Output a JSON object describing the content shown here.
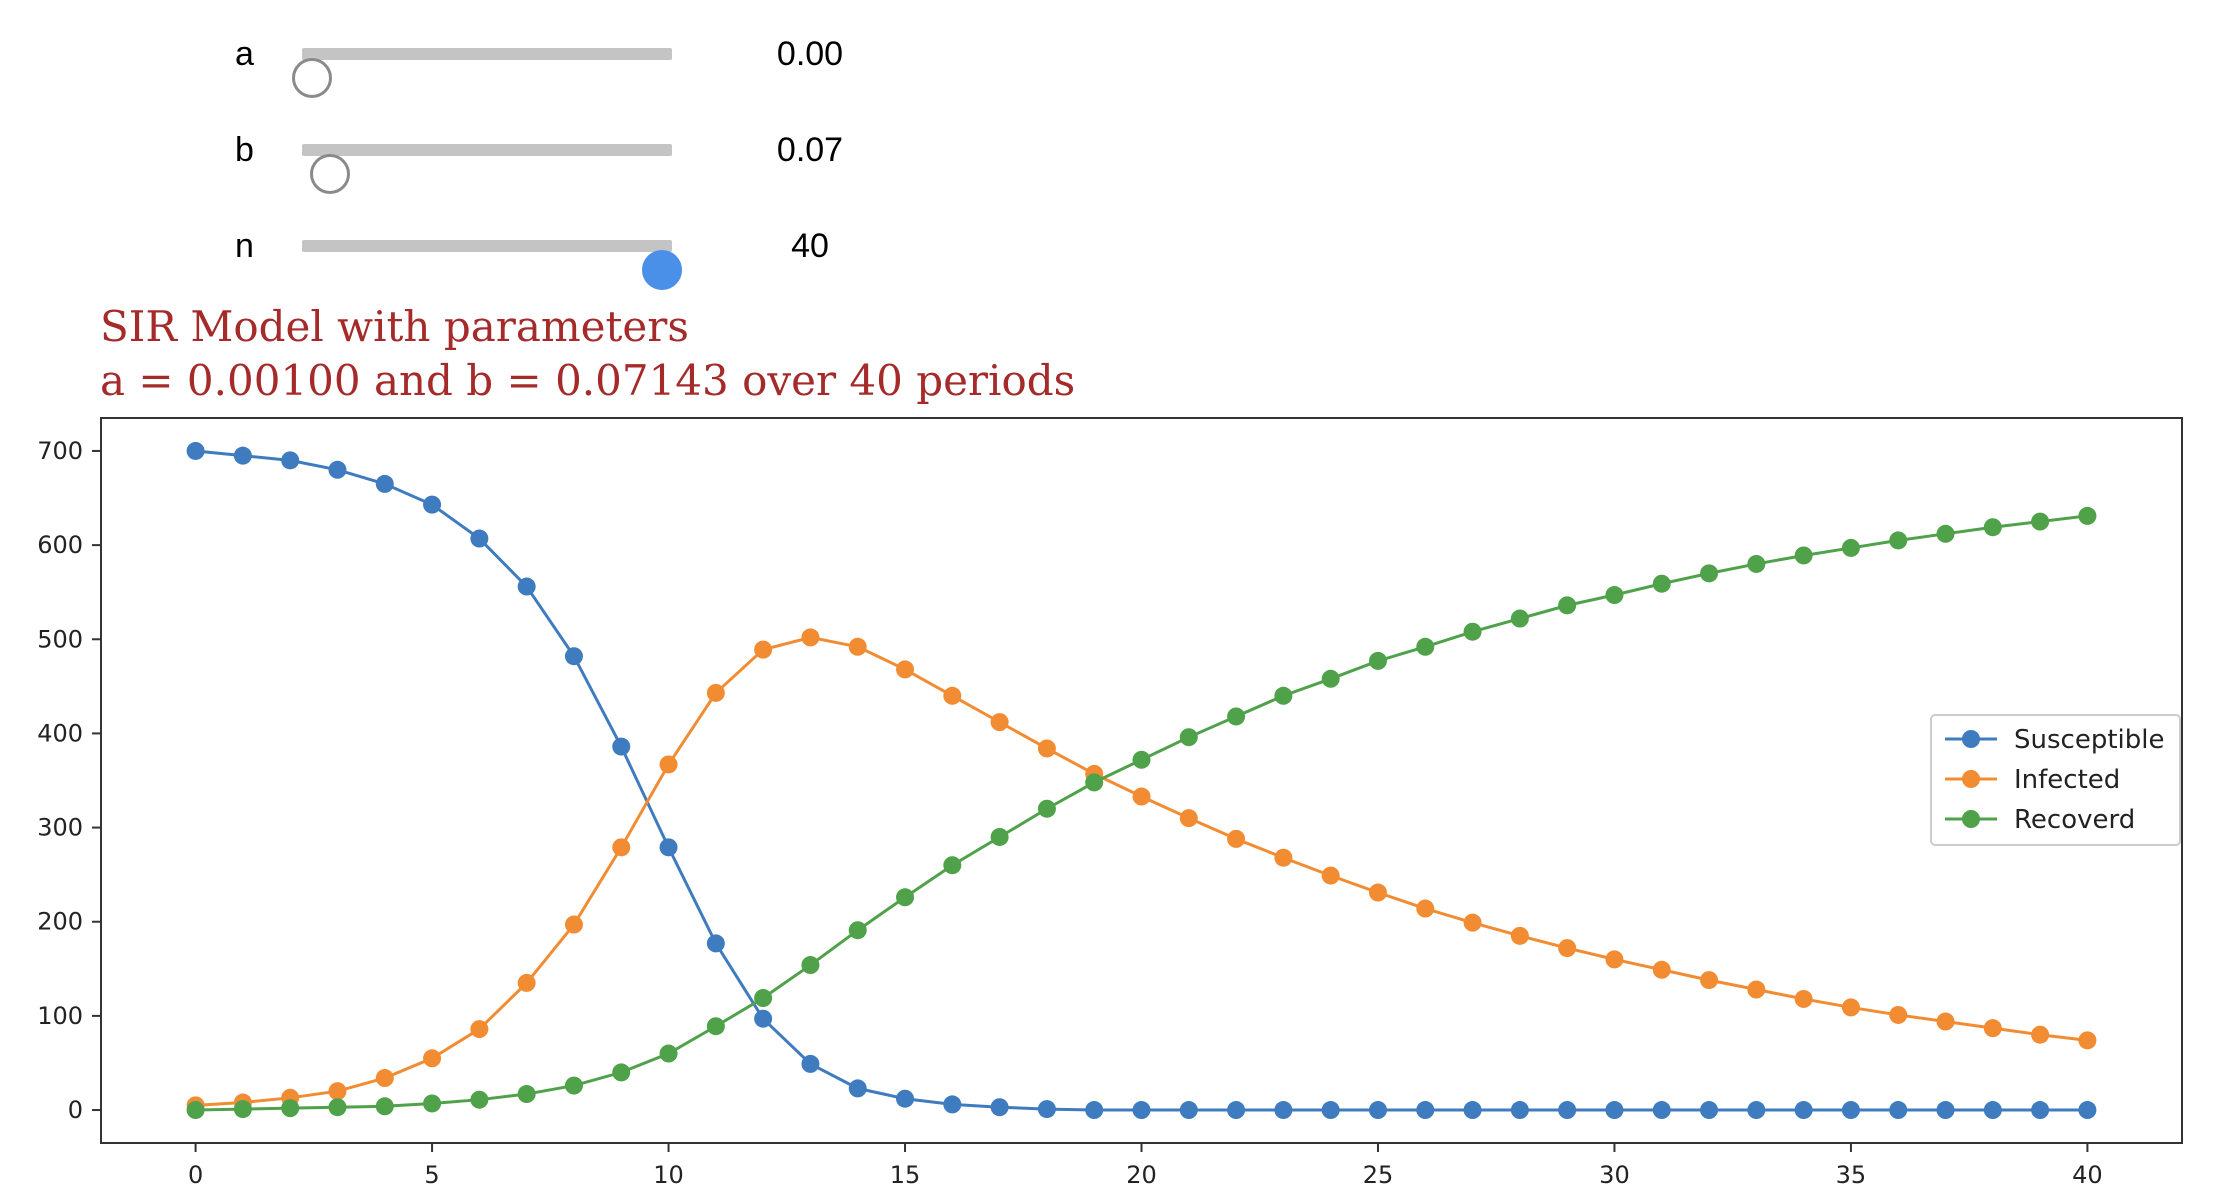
{
  "sliders": [
    {
      "label": "a",
      "value_text": "0.00",
      "fraction": 0.0
    },
    {
      "label": "b",
      "value_text": "0.07",
      "fraction": 0.05
    },
    {
      "label": "n",
      "value_text": "40",
      "fraction": 1.0
    }
  ],
  "colors": {
    "title": "#a52a2a",
    "slider_track": "#c4c4c4",
    "slider_active": "#4a90e8",
    "slider_inactive_border": "#8a8a8a"
  },
  "chart_data": {
    "type": "line",
    "title_lines": [
      "SIR Model with parameters",
      "a = 0.00100 and b = 0.07143 over 40 periods"
    ],
    "xlabel": "",
    "ylabel": "",
    "xlim": [
      -2,
      42
    ],
    "ylim": [
      -35,
      735
    ],
    "xticks": [
      0,
      5,
      10,
      15,
      20,
      25,
      30,
      35,
      40
    ],
    "yticks": [
      0,
      100,
      200,
      300,
      400,
      500,
      600,
      700
    ],
    "grid": false,
    "legend_position": "center-right",
    "x": [
      0,
      1,
      2,
      3,
      4,
      5,
      6,
      7,
      8,
      9,
      10,
      11,
      12,
      13,
      14,
      15,
      16,
      17,
      18,
      19,
      20,
      21,
      22,
      23,
      24,
      25,
      26,
      27,
      28,
      29,
      30,
      31,
      32,
      33,
      34,
      35,
      36,
      37,
      38,
      39,
      40
    ],
    "series": [
      {
        "name": "Susceptible",
        "color": "#3f7bbf",
        "values": [
          700,
          695,
          690,
          680,
          665,
          643,
          607,
          556,
          482,
          386,
          279,
          177,
          97,
          49,
          23,
          12,
          6,
          3,
          1,
          0,
          0,
          0,
          0,
          0,
          0,
          0,
          0,
          0,
          0,
          0,
          0,
          0,
          0,
          0,
          0,
          0,
          0,
          0,
          0,
          0,
          0
        ]
      },
      {
        "name": "Infected",
        "color": "#f28c33",
        "values": [
          5,
          8,
          13,
          20,
          34,
          55,
          86,
          135,
          197,
          279,
          367,
          443,
          489,
          502,
          492,
          468,
          440,
          412,
          384,
          357,
          333,
          310,
          288,
          268,
          249,
          231,
          214,
          199,
          185,
          172,
          160,
          149,
          138,
          128,
          118,
          109,
          101,
          94,
          87,
          80,
          74
        ]
      },
      {
        "name": "Recoverd",
        "color": "#4fa14a",
        "values": [
          0,
          1,
          2,
          3,
          4,
          7,
          11,
          17,
          26,
          40,
          60,
          89,
          119,
          154,
          191,
          226,
          260,
          290,
          320,
          348,
          372,
          396,
          418,
          440,
          458,
          477,
          492,
          508,
          522,
          536,
          547,
          559,
          570,
          580,
          589,
          597,
          605,
          612,
          619,
          625,
          631
        ]
      }
    ]
  }
}
